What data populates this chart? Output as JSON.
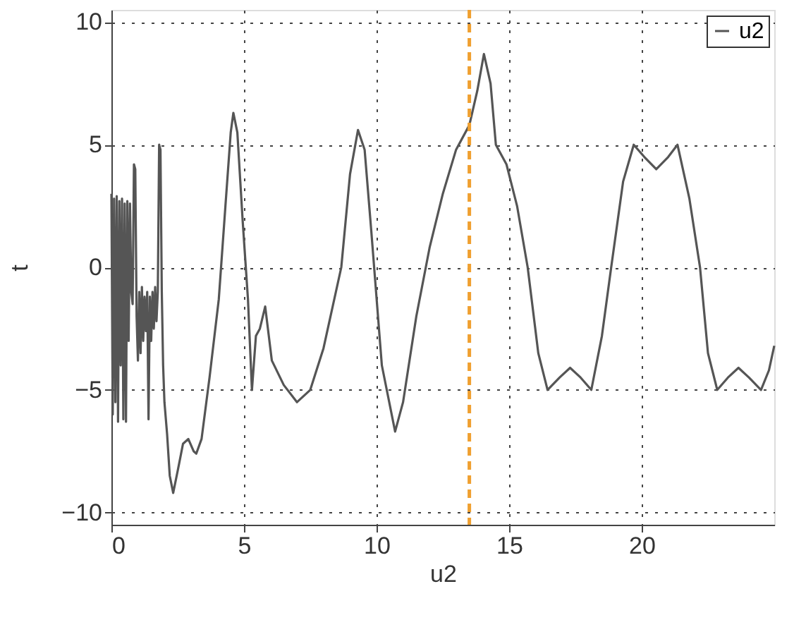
{
  "chart_data": {
    "type": "line",
    "xlabel": "u2",
    "ylabel": "t",
    "xlim": [
      0,
      25
    ],
    "ylim": [
      -10.5,
      10.5
    ],
    "xticks": [
      0,
      5,
      10,
      15,
      20
    ],
    "yticks": [
      -10,
      -5,
      0,
      5,
      10
    ],
    "grid": true,
    "legend": "top right",
    "line_style": "solid",
    "x": [
      0,
      0.05,
      0.1,
      0.15,
      0.2,
      0.25,
      0.3,
      0.35,
      0.4,
      0.45,
      0.5,
      0.55,
      0.6,
      0.65,
      0.7,
      0.75,
      0.8,
      0.85,
      0.9,
      0.95,
      1.0,
      1.05,
      1.1,
      1.15,
      1.2,
      1.25,
      1.3,
      1.35,
      1.4,
      1.45,
      1.5,
      1.55,
      1.6,
      1.65,
      1.7,
      1.75,
      1.8,
      1.85,
      1.9,
      1.95,
      2.0,
      2.1,
      2.2,
      2.33,
      2.5,
      2.7,
      2.9,
      3.1,
      3.2,
      3.4,
      3.7,
      4.05,
      4.3,
      4.5,
      4.6,
      4.75,
      4.95,
      5.15,
      5.3,
      5.45,
      5.6,
      5.8,
      6.05,
      6.5,
      7.0,
      7.5,
      8.0,
      8.67,
      9.0,
      9.3,
      9.55,
      9.8,
      10.2,
      10.7,
      11.0,
      11.5,
      12.0,
      12.5,
      13.0,
      13.5,
      13.8,
      14.05,
      14.3,
      14.5,
      14.9,
      15.3,
      15.7,
      16.1,
      16.45,
      16.9,
      17.3,
      17.7,
      18.1,
      18.5,
      18.85,
      19.3,
      19.7,
      20.1,
      20.55,
      21.0,
      21.35,
      21.8,
      22.2,
      22.5,
      22.85,
      23.25,
      23.65,
      24.05,
      24.5,
      24.8,
      25.0
    ],
    "series": [
      {
        "name": "u2",
        "color": "#555555",
        "values": [
          3,
          -6,
          2.8,
          -5.5,
          2.9,
          -6.3,
          2.7,
          -4,
          2.8,
          -6.2,
          2.6,
          -6.3,
          2.7,
          -3,
          2.6,
          -1,
          -1.5,
          4.2,
          4.0,
          -2,
          -3.8,
          -1,
          -3.5,
          -0.8,
          -3,
          -1.2,
          -2.6,
          -1,
          -6.2,
          -1.2,
          -3,
          -1,
          -2.5,
          -0.8,
          -2.2,
          -1,
          5,
          4.8,
          -1,
          -4,
          -5.5,
          -6.8,
          -8.5,
          -9.2,
          -8.3,
          -7.2,
          -7.0,
          -7.5,
          -7.6,
          -7.0,
          -4.5,
          -1.3,
          2.5,
          5.5,
          6.3,
          5.5,
          1.9,
          -1.3,
          -5.0,
          -2.8,
          -2.5,
          -1.6,
          -3.8,
          -4.8,
          -5.5,
          -5.0,
          -3.3,
          0,
          3.8,
          5.6,
          4.8,
          1.5,
          -4,
          -6.7,
          -5.5,
          -2,
          0.8,
          3,
          4.8,
          5.8,
          7.2,
          8.7,
          7.5,
          5,
          4.2,
          2.5,
          0,
          -3.5,
          -5,
          -4.5,
          -4.1,
          -4.5,
          -5,
          -2.8,
          0,
          3.5,
          5,
          4.5,
          4.0,
          4.5,
          5,
          2.8,
          0,
          -3.5,
          -5,
          -4.5,
          -4.1,
          -4.5,
          -5,
          -4.2,
          -3.2
        ]
      }
    ],
    "ref_lines": [
      {
        "axis": "x",
        "value": 13.5,
        "color": "#f0a030",
        "line_style": "dashed"
      }
    ]
  }
}
